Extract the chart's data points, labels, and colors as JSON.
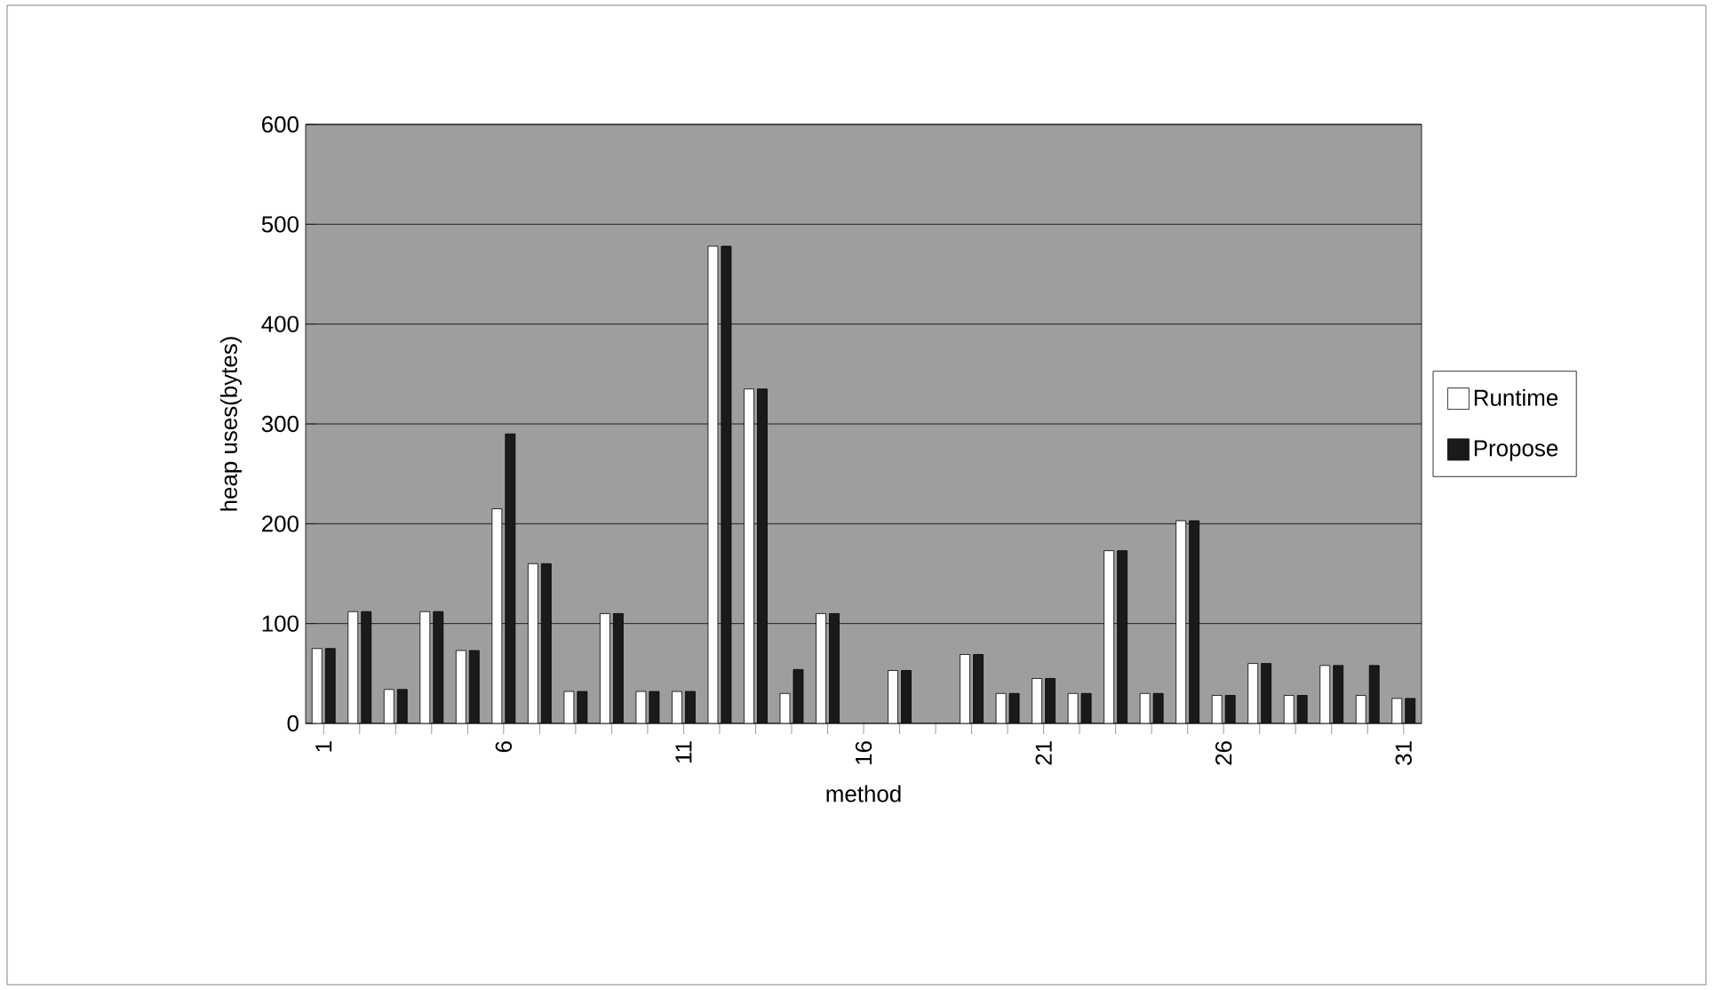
{
  "chart_data": {
    "type": "bar",
    "xlabel": "method",
    "ylabel": "heap uses(bytes)",
    "categories": [
      "1",
      null,
      null,
      null,
      null,
      "6",
      null,
      null,
      null,
      null,
      "11",
      null,
      null,
      null,
      null,
      "16",
      null,
      null,
      null,
      null,
      "21",
      null,
      null,
      null,
      null,
      "26",
      null,
      null,
      null,
      null,
      "31"
    ],
    "series": [
      {
        "name": "Runtime",
        "color": "#ffffff",
        "values": [
          75,
          112,
          34,
          112,
          73,
          215,
          160,
          32,
          110,
          32,
          32,
          478,
          335,
          30,
          110,
          null,
          53,
          null,
          69,
          30,
          45,
          30,
          173,
          30,
          203,
          28,
          60,
          28,
          58,
          28,
          25
        ]
      },
      {
        "name": "Propose",
        "color": "#1a1a1a",
        "values": [
          75,
          112,
          34,
          112,
          73,
          290,
          160,
          32,
          110,
          32,
          32,
          478,
          335,
          54,
          110,
          null,
          53,
          null,
          69,
          30,
          45,
          30,
          173,
          30,
          203,
          28,
          60,
          28,
          58,
          58,
          25
        ]
      }
    ],
    "ylim": [
      0,
      600
    ],
    "yticks": [
      0,
      100,
      200,
      300,
      400,
      500,
      600
    ],
    "grid": "y",
    "legend": "right"
  }
}
